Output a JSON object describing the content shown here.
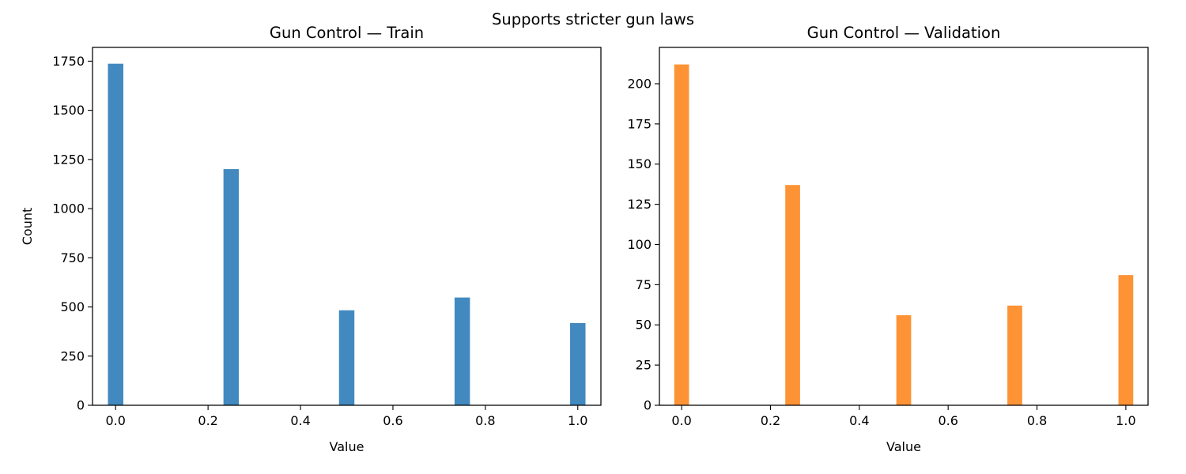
{
  "figure": {
    "suptitle": "Supports stricter gun laws"
  },
  "chart_data": [
    {
      "type": "bar",
      "title": "Gun Control — Train",
      "xlabel": "Value",
      "ylabel": "Count",
      "x": [
        0.0,
        0.25,
        0.5,
        0.75,
        1.0
      ],
      "values": [
        1737,
        1201,
        483,
        548,
        418
      ],
      "bar_width": 0.0333,
      "xlim": [
        -0.05,
        1.05
      ],
      "ylim": [
        0,
        1820
      ],
      "xticks": [
        0.0,
        0.2,
        0.4,
        0.6,
        0.8,
        1.0
      ],
      "xtick_labels": [
        "0.0",
        "0.2",
        "0.4",
        "0.6",
        "0.8",
        "1.0"
      ],
      "yticks": [
        0,
        250,
        500,
        750,
        1000,
        1250,
        1500,
        1750
      ],
      "ytick_labels": [
        "0",
        "250",
        "500",
        "750",
        "1000",
        "1250",
        "1500",
        "1750"
      ],
      "color": "#4189bf",
      "grid": false
    },
    {
      "type": "bar",
      "title": "Gun Control — Validation",
      "xlabel": "Value",
      "ylabel": "",
      "x": [
        0.0,
        0.25,
        0.5,
        0.75,
        1.0
      ],
      "values": [
        212,
        137,
        56,
        62,
        81
      ],
      "bar_width": 0.0333,
      "xlim": [
        -0.05,
        1.05
      ],
      "ylim": [
        0,
        222.6
      ],
      "xticks": [
        0.0,
        0.2,
        0.4,
        0.6,
        0.8,
        1.0
      ],
      "xtick_labels": [
        "0.0",
        "0.2",
        "0.4",
        "0.6",
        "0.8",
        "1.0"
      ],
      "yticks": [
        0,
        25,
        50,
        75,
        100,
        125,
        150,
        175,
        200
      ],
      "ytick_labels": [
        "0",
        "25",
        "50",
        "75",
        "100",
        "125",
        "150",
        "175",
        "200"
      ],
      "color": "#fd9335",
      "grid": false
    }
  ]
}
